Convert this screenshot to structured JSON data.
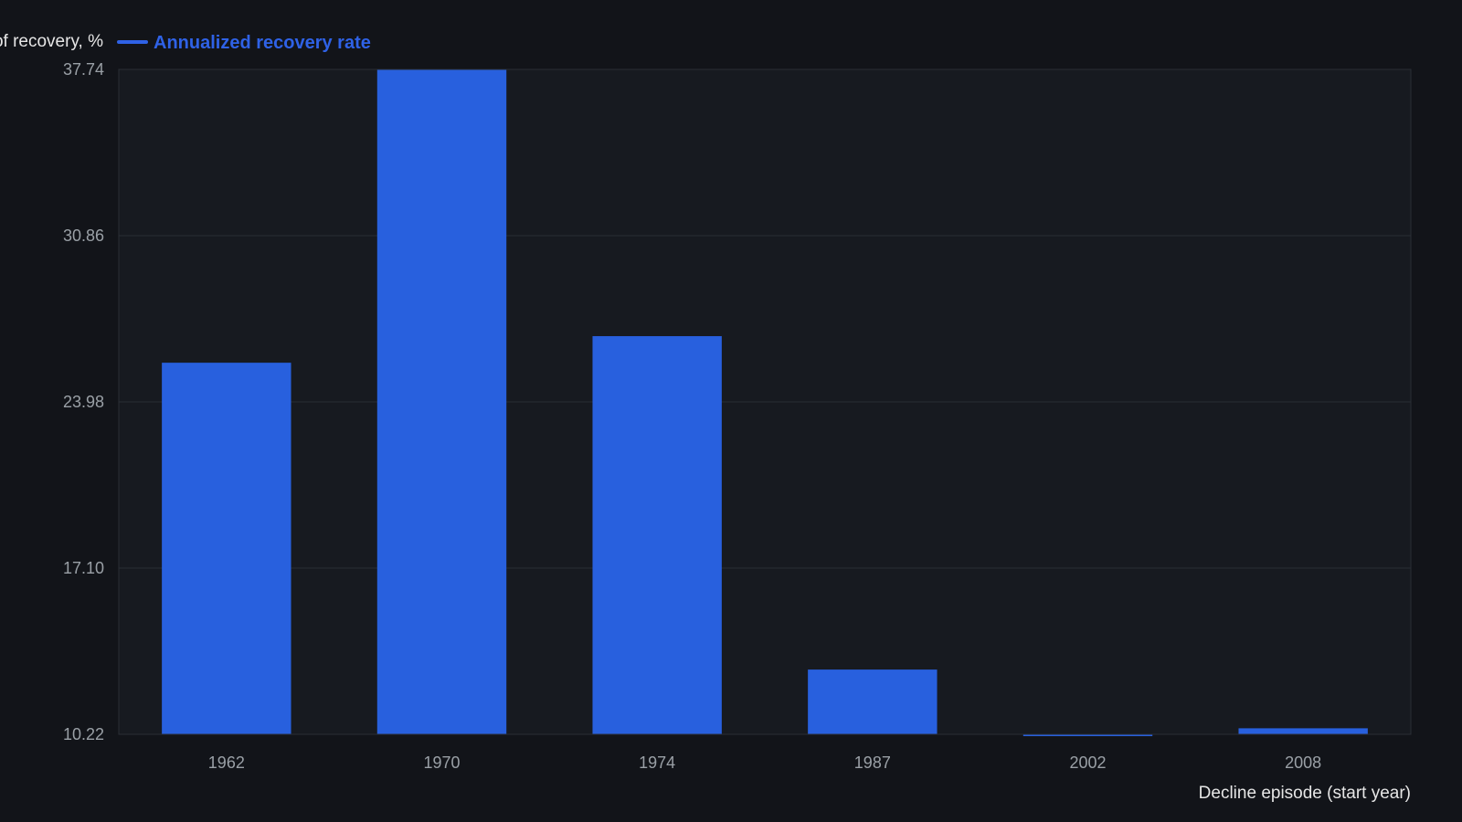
{
  "chart_data": {
    "type": "bar",
    "categories": [
      "1962",
      "1970",
      "1974",
      "1987",
      "2002",
      "2008"
    ],
    "series": [
      {
        "name": "Annualized recovery rate",
        "values": [
          25.6,
          37.74,
          26.7,
          12.9,
          10.15,
          10.47
        ]
      }
    ],
    "ylabel": "of recovery, %",
    "xlabel": "Decline episode (start year)",
    "ylim": [
      10.22,
      37.74
    ],
    "yticks": [
      "10.22",
      "17.10",
      "23.98",
      "30.86",
      "37.74"
    ],
    "grid": true,
    "legend_position": "top-left",
    "colors": {
      "background": "#121419",
      "plot_background": "#171a20",
      "bar": "#2860de",
      "grid": "#2a2e35",
      "legend": "#2f62e6"
    }
  }
}
